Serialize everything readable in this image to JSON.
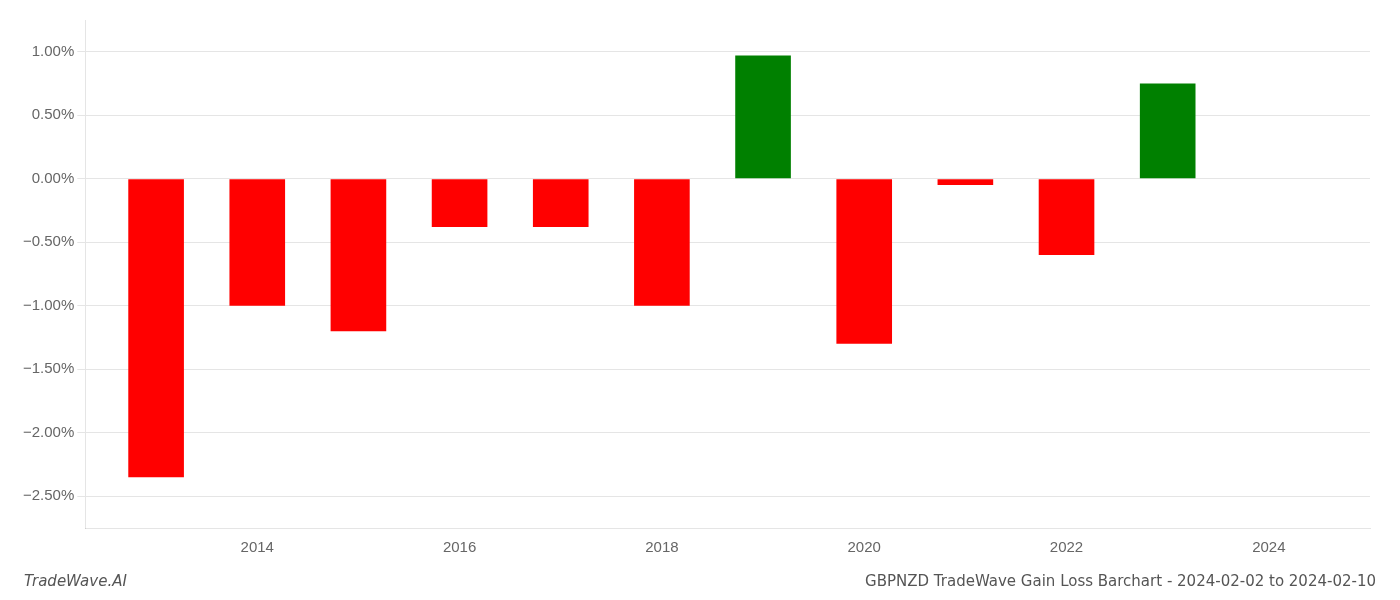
{
  "chart_data": {
    "type": "bar",
    "title": "GBPNZD TradeWave Gain Loss Barchart - 2024-02-02 to 2024-02-10",
    "annotations": [
      "TradeWave.AI"
    ],
    "x": [
      2013,
      2014,
      2015,
      2016,
      2017,
      2018,
      2019,
      2020,
      2021,
      2022,
      2023
    ],
    "values": [
      -2.35,
      -1.0,
      -1.2,
      -0.38,
      -0.38,
      -1.0,
      0.97,
      -1.3,
      -0.05,
      -0.6,
      0.75
    ],
    "colors": [
      "#ff0000",
      "#ff0000",
      "#ff0000",
      "#ff0000",
      "#ff0000",
      "#ff0000",
      "#008000",
      "#ff0000",
      "#ff0000",
      "#ff0000",
      "#008000"
    ],
    "xlim": [
      2012.3,
      2025.0
    ],
    "xticks": [
      2014,
      2016,
      2018,
      2020,
      2022,
      2024
    ],
    "ylim": [
      -2.75,
      1.25
    ],
    "yticks": [
      {
        "value": -2.5,
        "label": "−2.50%"
      },
      {
        "value": -2.0,
        "label": "−2.00%"
      },
      {
        "value": -1.5,
        "label": "−1.50%"
      },
      {
        "value": -1.0,
        "label": "−1.00%"
      },
      {
        "value": -0.5,
        "label": "−0.50%"
      },
      {
        "value": 0.0,
        "label": "0.00%"
      },
      {
        "value": 0.5,
        "label": "0.50%"
      },
      {
        "value": 1.0,
        "label": "1.00%"
      }
    ],
    "grid": "y"
  }
}
